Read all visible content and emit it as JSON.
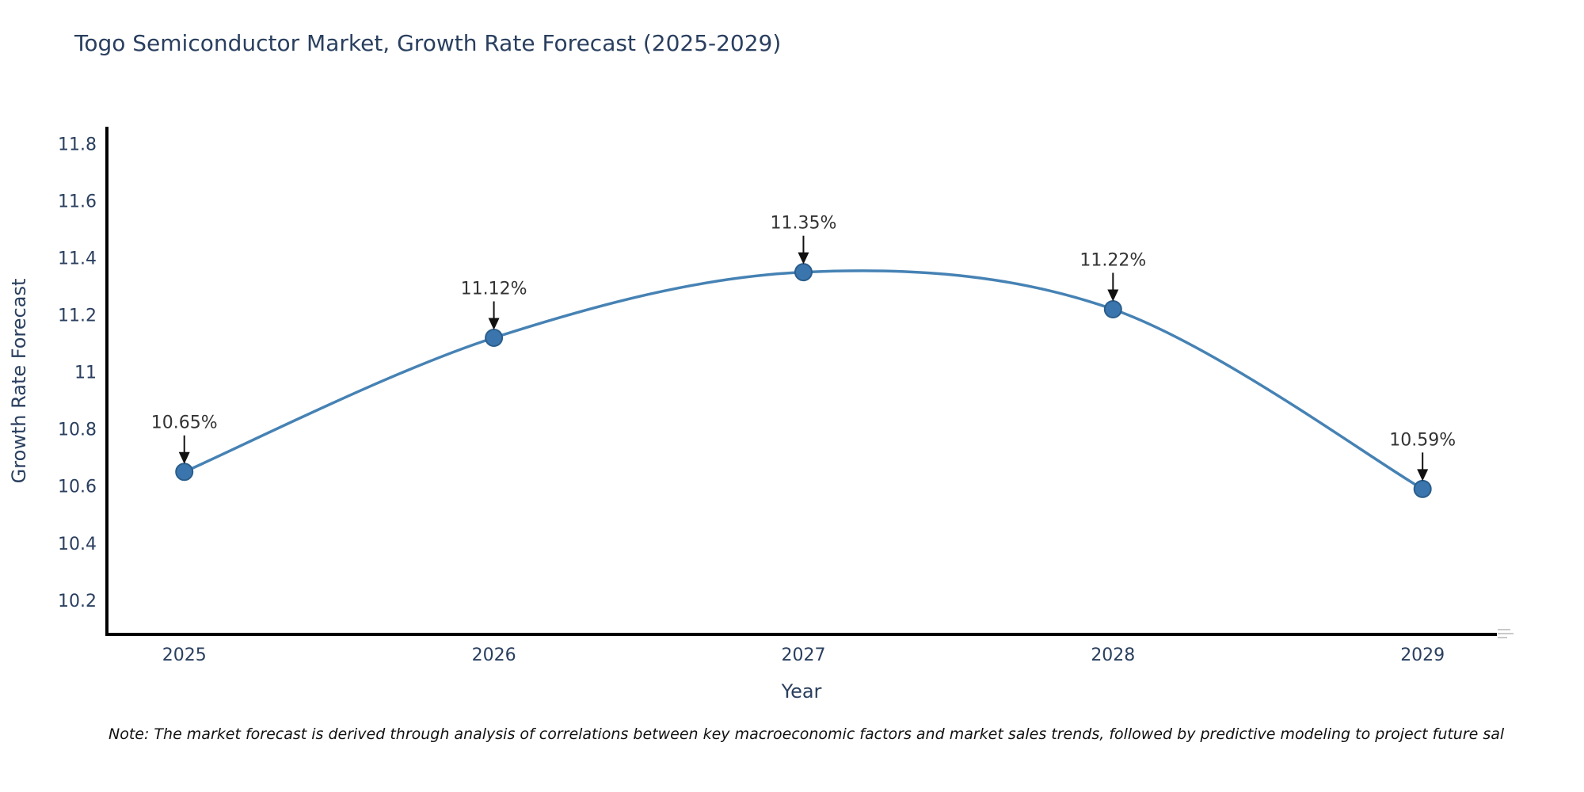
{
  "title": "Togo Semiconductor Market, Growth Rate Forecast (2025-2029)",
  "note": "Note: The market forecast is derived through analysis of correlations between key macroeconomic factors and market sales trends, followed by predictive modeling to project future sal",
  "chart_data": {
    "type": "line",
    "title": "Togo Semiconductor Market, Growth Rate Forecast (2025-2029)",
    "xlabel": "Year",
    "ylabel": "Growth Rate Forecast",
    "line_shape": "spline",
    "grid": false,
    "legend": "none",
    "x": [
      2025,
      2026,
      2027,
      2028,
      2029
    ],
    "values": [
      10.65,
      11.12,
      11.35,
      11.22,
      10.59
    ],
    "point_labels": [
      "10.65%",
      "11.12%",
      "11.35%",
      "11.22%",
      "10.59%"
    ],
    "xticks": [
      2025,
      2026,
      2027,
      2028,
      2029
    ],
    "xtick_labels": [
      "2025",
      "2026",
      "2027",
      "2028",
      "2029"
    ],
    "yticks": [
      10.2,
      10.4,
      10.6,
      10.8,
      11,
      11.2,
      11.4,
      11.6,
      11.8
    ],
    "ytick_labels": [
      "10.2",
      "10.4",
      "10.6",
      "10.8",
      "11",
      "11.2",
      "11.4",
      "11.6",
      "11.8"
    ],
    "xlim": [
      2024.75,
      2029.24
    ],
    "ylim": [
      10.08,
      11.86
    ],
    "colors": {
      "line": "#4682b4",
      "marker": "#3a76ad",
      "marker_edge": "#2a5d8c",
      "axis": "#000000",
      "text": "#2a3f5f",
      "annotation": "#333333",
      "arrow": "#111111"
    }
  }
}
